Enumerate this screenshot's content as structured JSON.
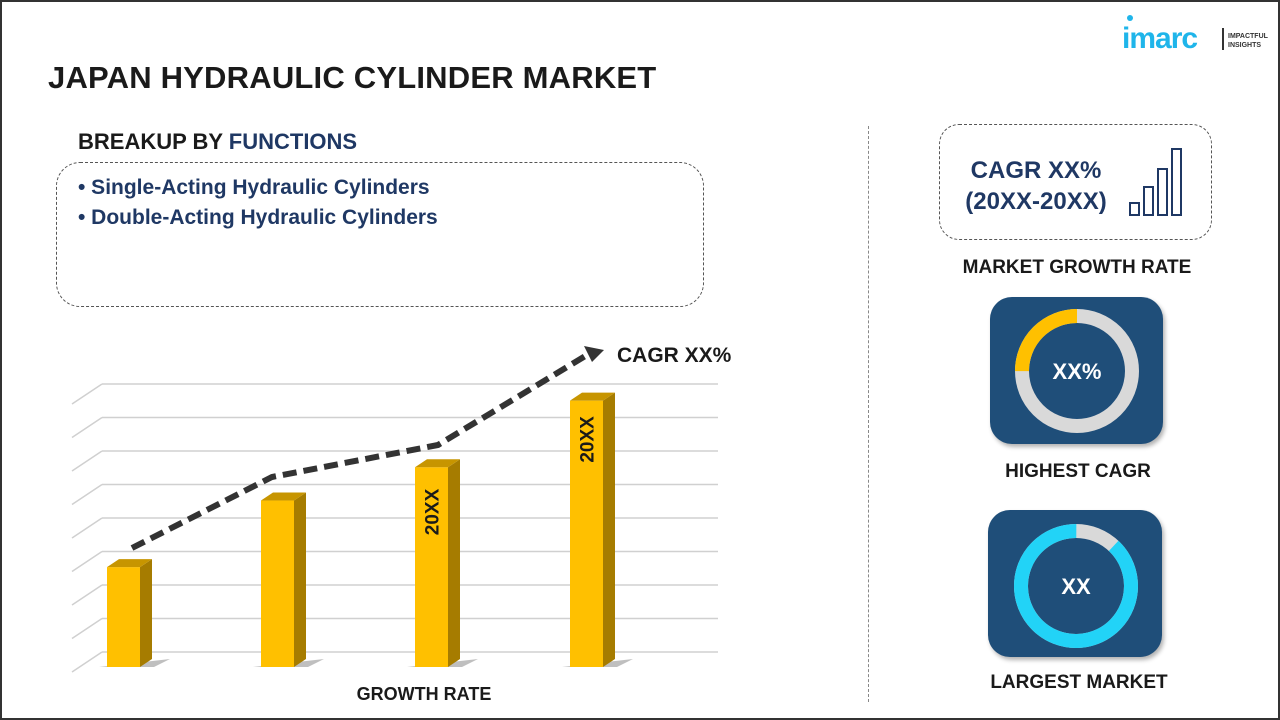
{
  "header": {
    "title": "JAPAN HYDRAULIC CYLINDER MARKET"
  },
  "logo": {
    "brand": "imarc",
    "tagline_1": "IMPACTFUL",
    "tagline_2": "INSIGHTS",
    "color": "#1fb5ea"
  },
  "segment": {
    "heading_prefix": "BREAKUP BY ",
    "heading_highlight": "FUNCTIONS",
    "items": [
      "• Single-Acting Hydraulic Cylinders",
      "• Double-Acting Hydraulic Cylinders"
    ]
  },
  "growth_chart": {
    "cagr_label": "CAGR XX%",
    "x_label": "GROWTH RATE",
    "bar_labels": [
      "",
      "",
      "20XX",
      "20XX"
    ]
  },
  "chart_data": {
    "type": "bar",
    "categories": [
      "",
      "",
      "20XX",
      "20XX"
    ],
    "values": [
      3,
      5,
      6,
      8
    ],
    "xlabel": "GROWTH RATE",
    "ylim": [
      0,
      8.5
    ],
    "grid": true,
    "annotation": "CAGR XX%",
    "bar_color": "#ffc000"
  },
  "market_growth": {
    "line1": "CAGR XX%",
    "line2": "(20XX-20XX)",
    "label": "MARKET GROWTH RATE"
  },
  "highest_cagr": {
    "value": "XX%",
    "label": "HIGHEST CAGR",
    "fill_fraction": 0.25,
    "color": "#ffc000"
  },
  "largest_market": {
    "value": "XX",
    "label": "LARGEST MARKET",
    "fill_fraction": 0.88,
    "color": "#22d3f7"
  }
}
